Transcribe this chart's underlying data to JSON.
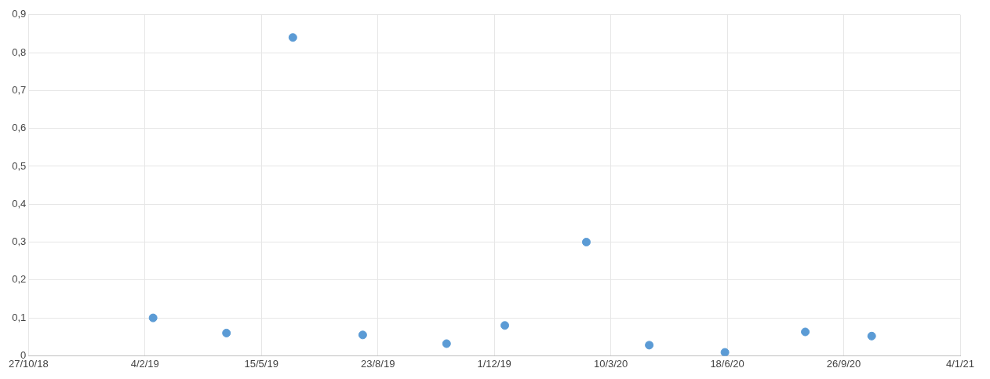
{
  "chart_data": {
    "type": "scatter",
    "x": [
      "2019-02-11",
      "2019-04-15",
      "2019-06-11",
      "2019-08-10",
      "2019-10-21",
      "2019-12-10",
      "2020-02-18",
      "2020-04-12",
      "2020-06-16",
      "2020-08-24",
      "2020-10-20"
    ],
    "series": [
      {
        "color": "#5b9bd5",
        "values": [
          0.1,
          0.06,
          0.84,
          0.055,
          0.032,
          0.08,
          0.3,
          0.028,
          0.009,
          0.063,
          0.052
        ]
      }
    ],
    "xlim": [
      "2018-10-27",
      "2021-01-04"
    ],
    "xticks": [
      {
        "value": "2018-10-27",
        "label": "27/10/18"
      },
      {
        "value": "2019-02-04",
        "label": "4/2/19"
      },
      {
        "value": "2019-05-15",
        "label": "15/5/19"
      },
      {
        "value": "2019-08-23",
        "label": "23/8/19"
      },
      {
        "value": "2019-12-01",
        "label": "1/12/19"
      },
      {
        "value": "2020-03-10",
        "label": "10/3/20"
      },
      {
        "value": "2020-06-18",
        "label": "18/6/20"
      },
      {
        "value": "2020-09-26",
        "label": "26/9/20"
      },
      {
        "value": "2021-01-04",
        "label": "4/1/21"
      }
    ],
    "ylim": [
      0,
      0.9
    ],
    "yticks": [
      0,
      {
        "value": 0.1,
        "label": "0,1"
      },
      {
        "value": 0.2,
        "label": "0,2"
      },
      {
        "value": 0.3,
        "label": "0,3"
      },
      {
        "value": 0.4,
        "label": "0,4"
      },
      {
        "value": 0.5,
        "label": "0,5"
      },
      {
        "value": 0.6,
        "label": "0,6"
      },
      {
        "value": 0.7,
        "label": "0,7"
      },
      {
        "value": 0.8,
        "label": "0,8"
      },
      {
        "value": 0.9,
        "label": "0,9"
      }
    ],
    "grid": true,
    "legend": false,
    "marker": "circle"
  }
}
